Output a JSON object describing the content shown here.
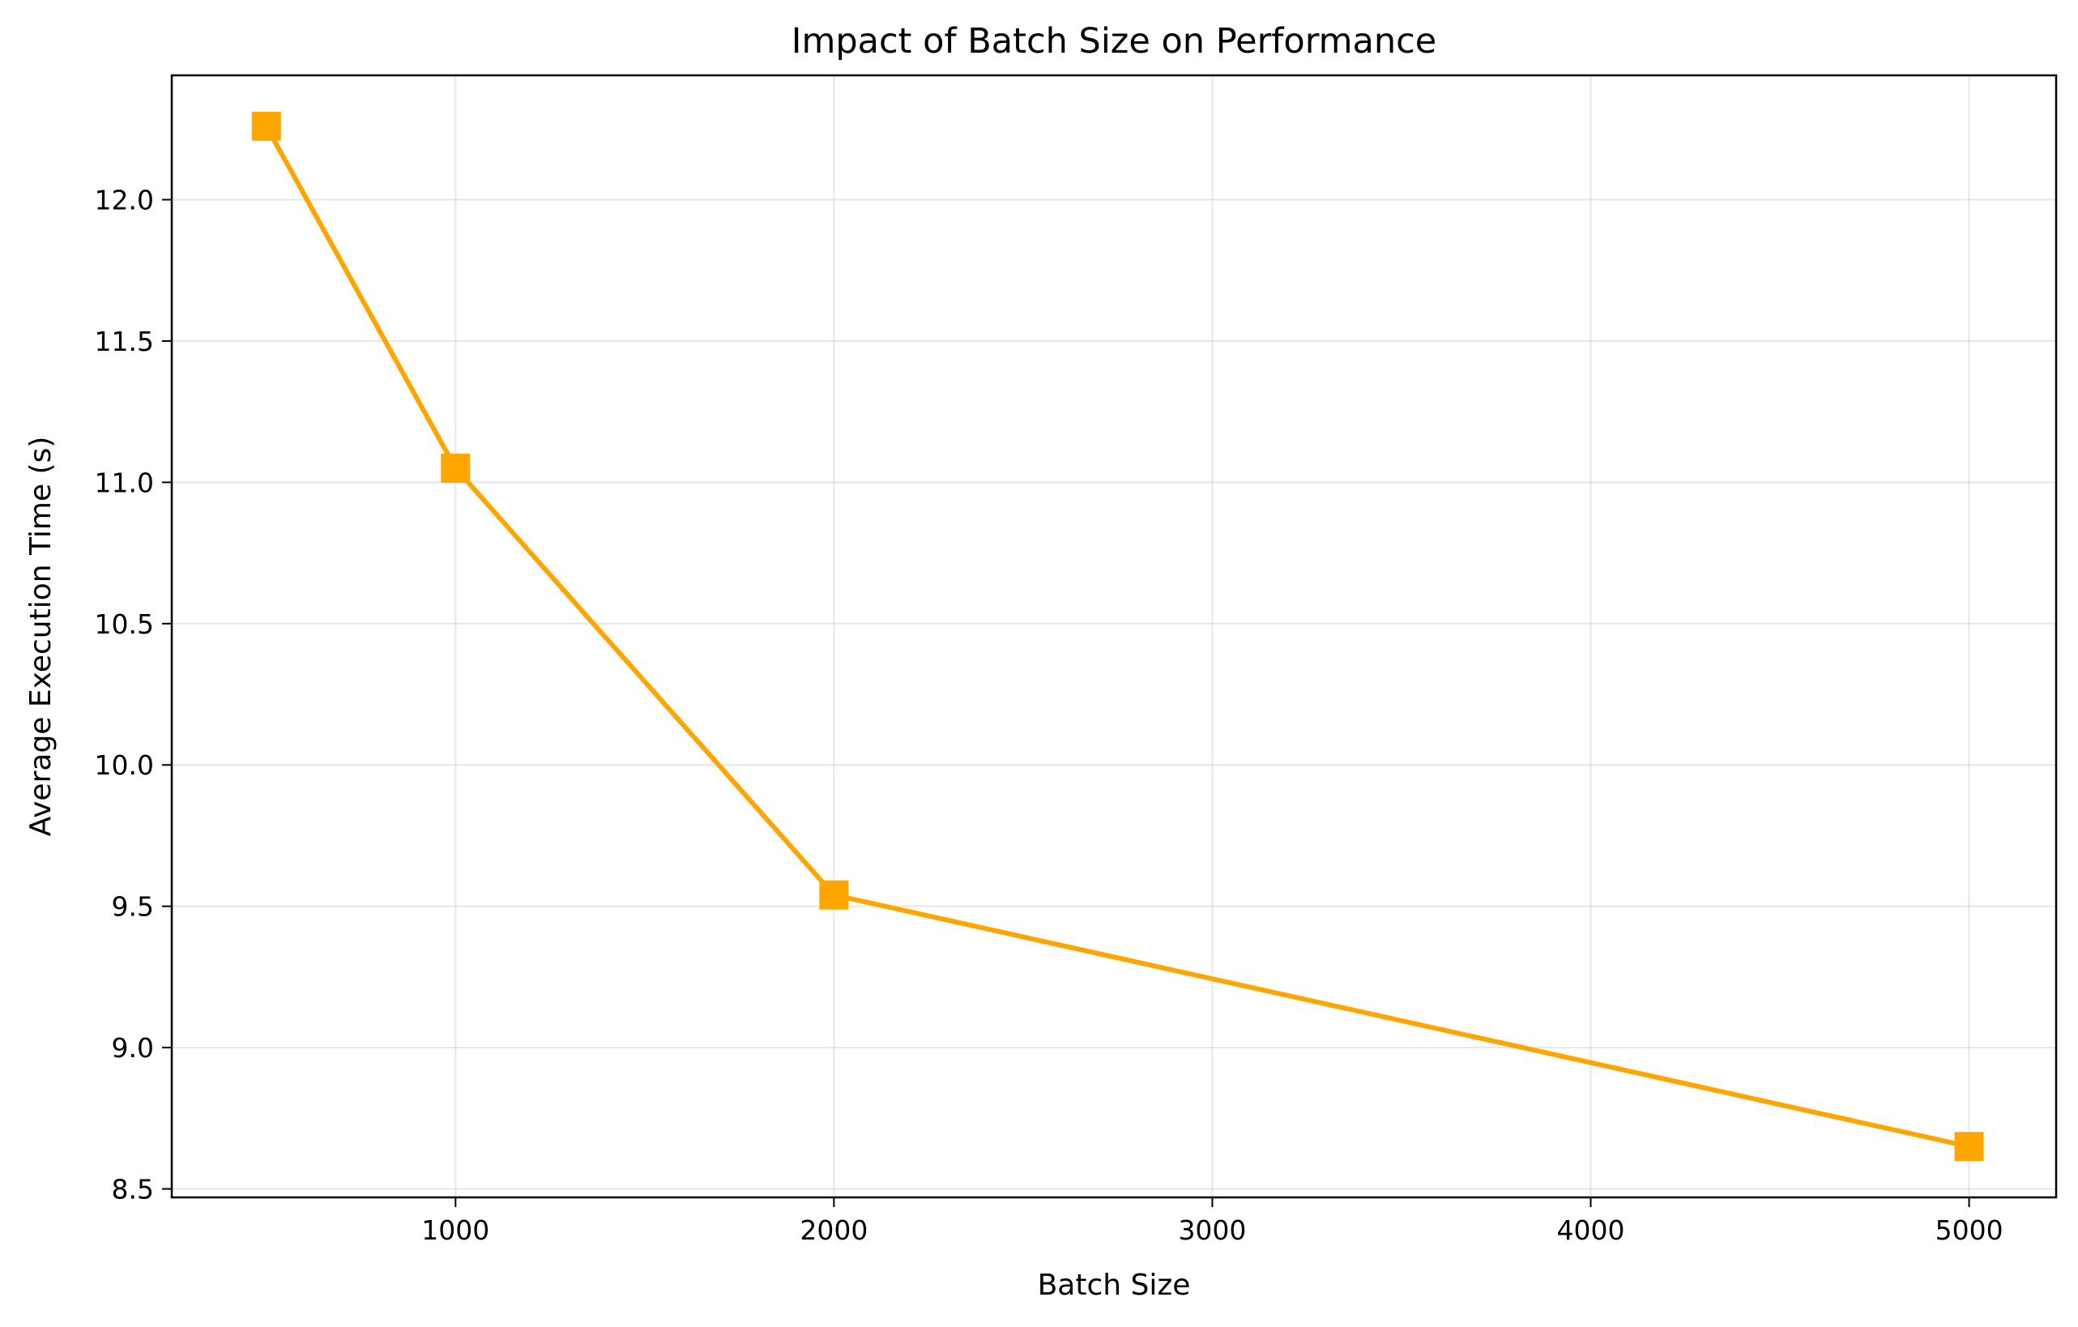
{
  "chart_data": {
    "type": "line",
    "title": "Impact of Batch Size on Performance",
    "xlabel": "Batch Size",
    "ylabel": "Average Execution Time (s)",
    "xlim": [
      250,
      5230
    ],
    "ylim": [
      8.47,
      12.44
    ],
    "xticks": [
      1000,
      2000,
      3000,
      4000,
      5000
    ],
    "yticks": [
      8.5,
      9.0,
      9.5,
      10.0,
      10.5,
      11.0,
      11.5,
      12.0
    ],
    "grid": true,
    "series": [
      {
        "color": "#FFA500",
        "marker": "square",
        "x": [
          500,
          1000,
          2000,
          5000
        ],
        "y": [
          12.26,
          11.05,
          9.54,
          8.65
        ]
      }
    ]
  }
}
